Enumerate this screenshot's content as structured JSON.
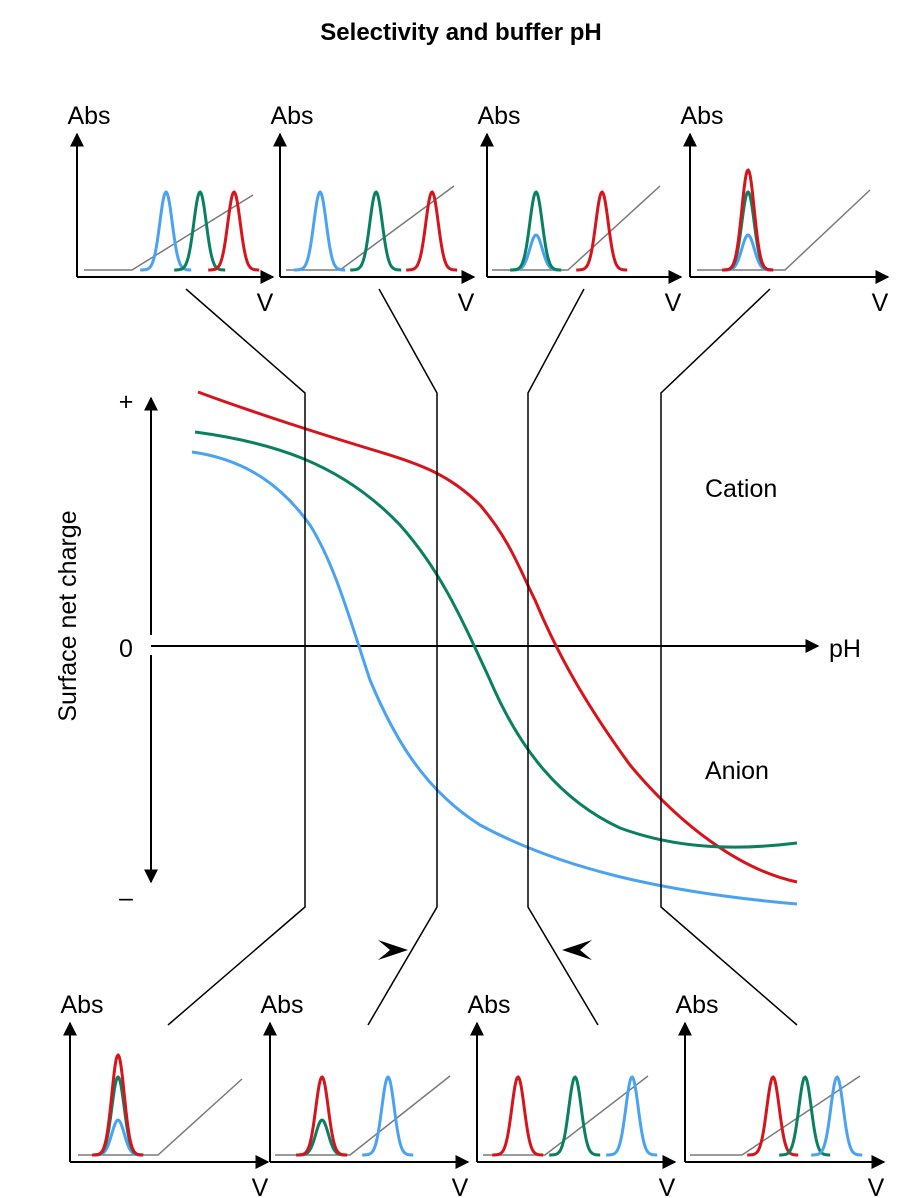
{
  "title": "Selectivity and buffer pH",
  "colors": {
    "red": "#d7141c",
    "green": "#0a8060",
    "blue": "#4aa2f2",
    "baseline": "#7a7a7a",
    "axis": "#000000"
  },
  "main_axes": {
    "y_label": "Surface net charge",
    "y_plus": "+",
    "y_zero": "0",
    "y_minus": "–",
    "x_label": "pH",
    "region_upper": "Cation",
    "region_lower": "Anion"
  },
  "chromatograms": {
    "y_label": "Abs",
    "x_label": "V",
    "top": [
      {
        "order": [
          "blue",
          "green",
          "red"
        ]
      },
      {
        "order": [
          "blue",
          "green",
          "red"
        ]
      },
      {
        "order": [
          "green/blue",
          "red"
        ]
      },
      {
        "order": [
          "red/green/blue"
        ]
      }
    ],
    "bottom": [
      {
        "order": [
          "red/green/blue"
        ]
      },
      {
        "order": [
          "red/green",
          "blue"
        ]
      },
      {
        "order": [
          "red",
          "green",
          "blue"
        ]
      },
      {
        "order": [
          "red",
          "green",
          "blue"
        ]
      }
    ]
  }
}
